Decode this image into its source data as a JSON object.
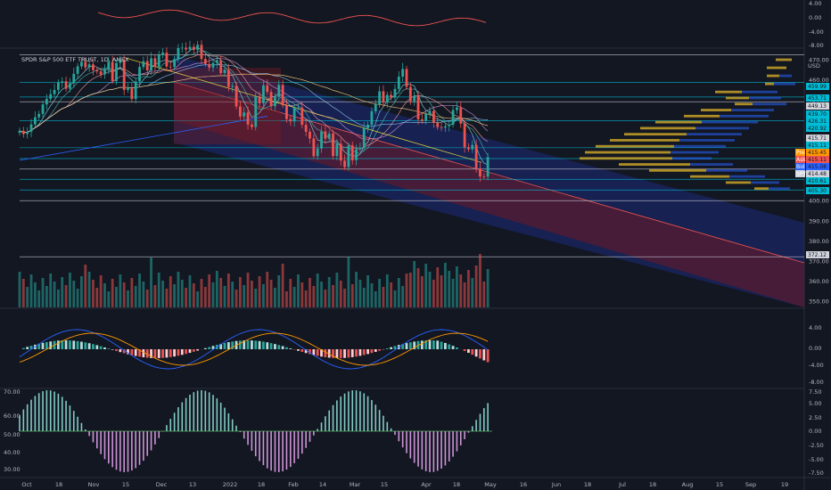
{
  "chart": {
    "title": "SPDR S&P 500 ETF TRUST, 1D, AMEX",
    "currency": "USD",
    "colors": {
      "background": "#131722",
      "up": "#26a69a",
      "down": "#ef5350",
      "channel_blue": "#2a3dbb",
      "channel_red": "#8b1e2a",
      "level_line": "#d1d4dc",
      "cyan_line": "#00bcd4",
      "profile_gold": "#c9a227",
      "profile_blue": "#2962ff"
    },
    "price_axis": {
      "ticks": [
        "470.00",
        "460.00",
        "450.00",
        "440.00",
        "430.00",
        "420.00",
        "410.00",
        "400.00",
        "390.00",
        "380.00",
        "370.00",
        "360.00",
        "350.00"
      ],
      "ylim": [
        347,
        474
      ]
    },
    "top_panel_axis": {
      "ticks": [
        "4.00",
        "0.00",
        "-4.00",
        "-8.00"
      ]
    },
    "macd_axis": {
      "ticks": [
        "4.00",
        "0.00",
        "-4.00",
        "-8.00"
      ]
    },
    "osc_axis": {
      "left_ticks": [
        "70.00",
        "60.00",
        "50.00",
        "40.00",
        "30.00"
      ],
      "right_ticks": [
        "7.50",
        "5.00",
        "2.50",
        "0.00",
        "-2.50",
        "-5.00",
        "-7.50"
      ]
    },
    "price_tags": [
      {
        "label": "",
        "text": "459.99",
        "value": 459.99,
        "color": "#00bcd4"
      },
      {
        "label": "",
        "text": "453.71",
        "value": 453.71,
        "color": "#00bcd4"
      },
      {
        "label": "",
        "text": "449.13",
        "value": 449.13,
        "color": "#d1d4dc"
      },
      {
        "label": "",
        "text": "439.70",
        "value": 439.7,
        "color": "#00bcd4"
      },
      {
        "label": "",
        "text": "426.31",
        "value": 426.31,
        "color": "#00bcd4"
      },
      {
        "label": "",
        "text": "420.92",
        "value": 420.92,
        "color": "#00bcd4"
      },
      {
        "label": "",
        "text": "415.71",
        "value": 415.71,
        "color": "#d1d4dc"
      },
      {
        "label": "",
        "text": "415.11",
        "value": 415.11,
        "color": "#00bcd4"
      },
      {
        "label": "Pre",
        "text": "415.45",
        "value": 415.45,
        "color": "#ff9800"
      },
      {
        "label": "Ask",
        "text": "415.11",
        "value": 415.11,
        "color": "#ef5350"
      },
      {
        "label": "Bid",
        "text": "415.08",
        "value": 415.08,
        "color": "#2962ff"
      },
      {
        "label": "SPY",
        "text": "414.48",
        "value": 414.48,
        "color": "#d1d4dc"
      },
      {
        "label": "",
        "text": "410.61",
        "value": 410.61,
        "color": "#00bcd4"
      },
      {
        "label": "",
        "text": "405.30",
        "value": 405.3,
        "color": "#00bcd4"
      },
      {
        "label": "",
        "text": "372.12",
        "value": 372.12,
        "color": "#d1d4dc"
      }
    ],
    "x_axis": {
      "labels": [
        "Oct",
        "18",
        "Nov",
        "15",
        "Dec",
        "13",
        "2022",
        "18",
        "Feb",
        "14",
        "Mar",
        "15",
        "Apr",
        "18",
        "May",
        "16",
        "Jun",
        "18",
        "Jul",
        "18",
        "Aug",
        "15",
        "Sep",
        "19"
      ]
    }
  },
  "chart_data": {
    "type": "candlestick",
    "symbol": "SPY",
    "ylim": [
      347,
      474
    ],
    "close": [
      434.7,
      433.1,
      434.2,
      437.9,
      441.4,
      443.1,
      447.8,
      450.6,
      452.9,
      455.0,
      458.6,
      459.3,
      455.6,
      458.3,
      463.0,
      466.7,
      468.9,
      466.2,
      467.7,
      464.8,
      464.2,
      462.7,
      465.4,
      468.9,
      459.4,
      468.4,
      469.9,
      455.0,
      455.8,
      450.5,
      459.2,
      466.4,
      469.3,
      464.7,
      470.7,
      466.4,
      472.4,
      473.5,
      466.6,
      466.5,
      470.3,
      475.8,
      476.0,
      475.1,
      476.4,
      474.9,
      477.4,
      470.4,
      467.9,
      466.1,
      468.4,
      469.8,
      463.4,
      465.0,
      456.5,
      457.0,
      446.8,
      441.8,
      443.8,
      437.8,
      436.6,
      451.8,
      448.4,
      457.3,
      454.0,
      446.9,
      451.6,
      457.5,
      447.3,
      440.5,
      439.4,
      446.1,
      446.2,
      437.7,
      434.2,
      430.9,
      422.1,
      425.9,
      434.4,
      430.8,
      433.3,
      422.2,
      428.3,
      419.9,
      416.7,
      427.4,
      420.1,
      425.5,
      426.1,
      436.0,
      437.7,
      444.4,
      447.9,
      454.3,
      448.7,
      452.5,
      451.2,
      455.5,
      461.6,
      465.4,
      456.5,
      449.4,
      452.0,
      440.4,
      439.6,
      443.0,
      444.6,
      438.7,
      436.5,
      436.3,
      437.0,
      437.7,
      445.0,
      446.3,
      438.3,
      426.5,
      425.5,
      427.7,
      416.1,
      412.0,
      411.9,
      421.7
    ]
  }
}
